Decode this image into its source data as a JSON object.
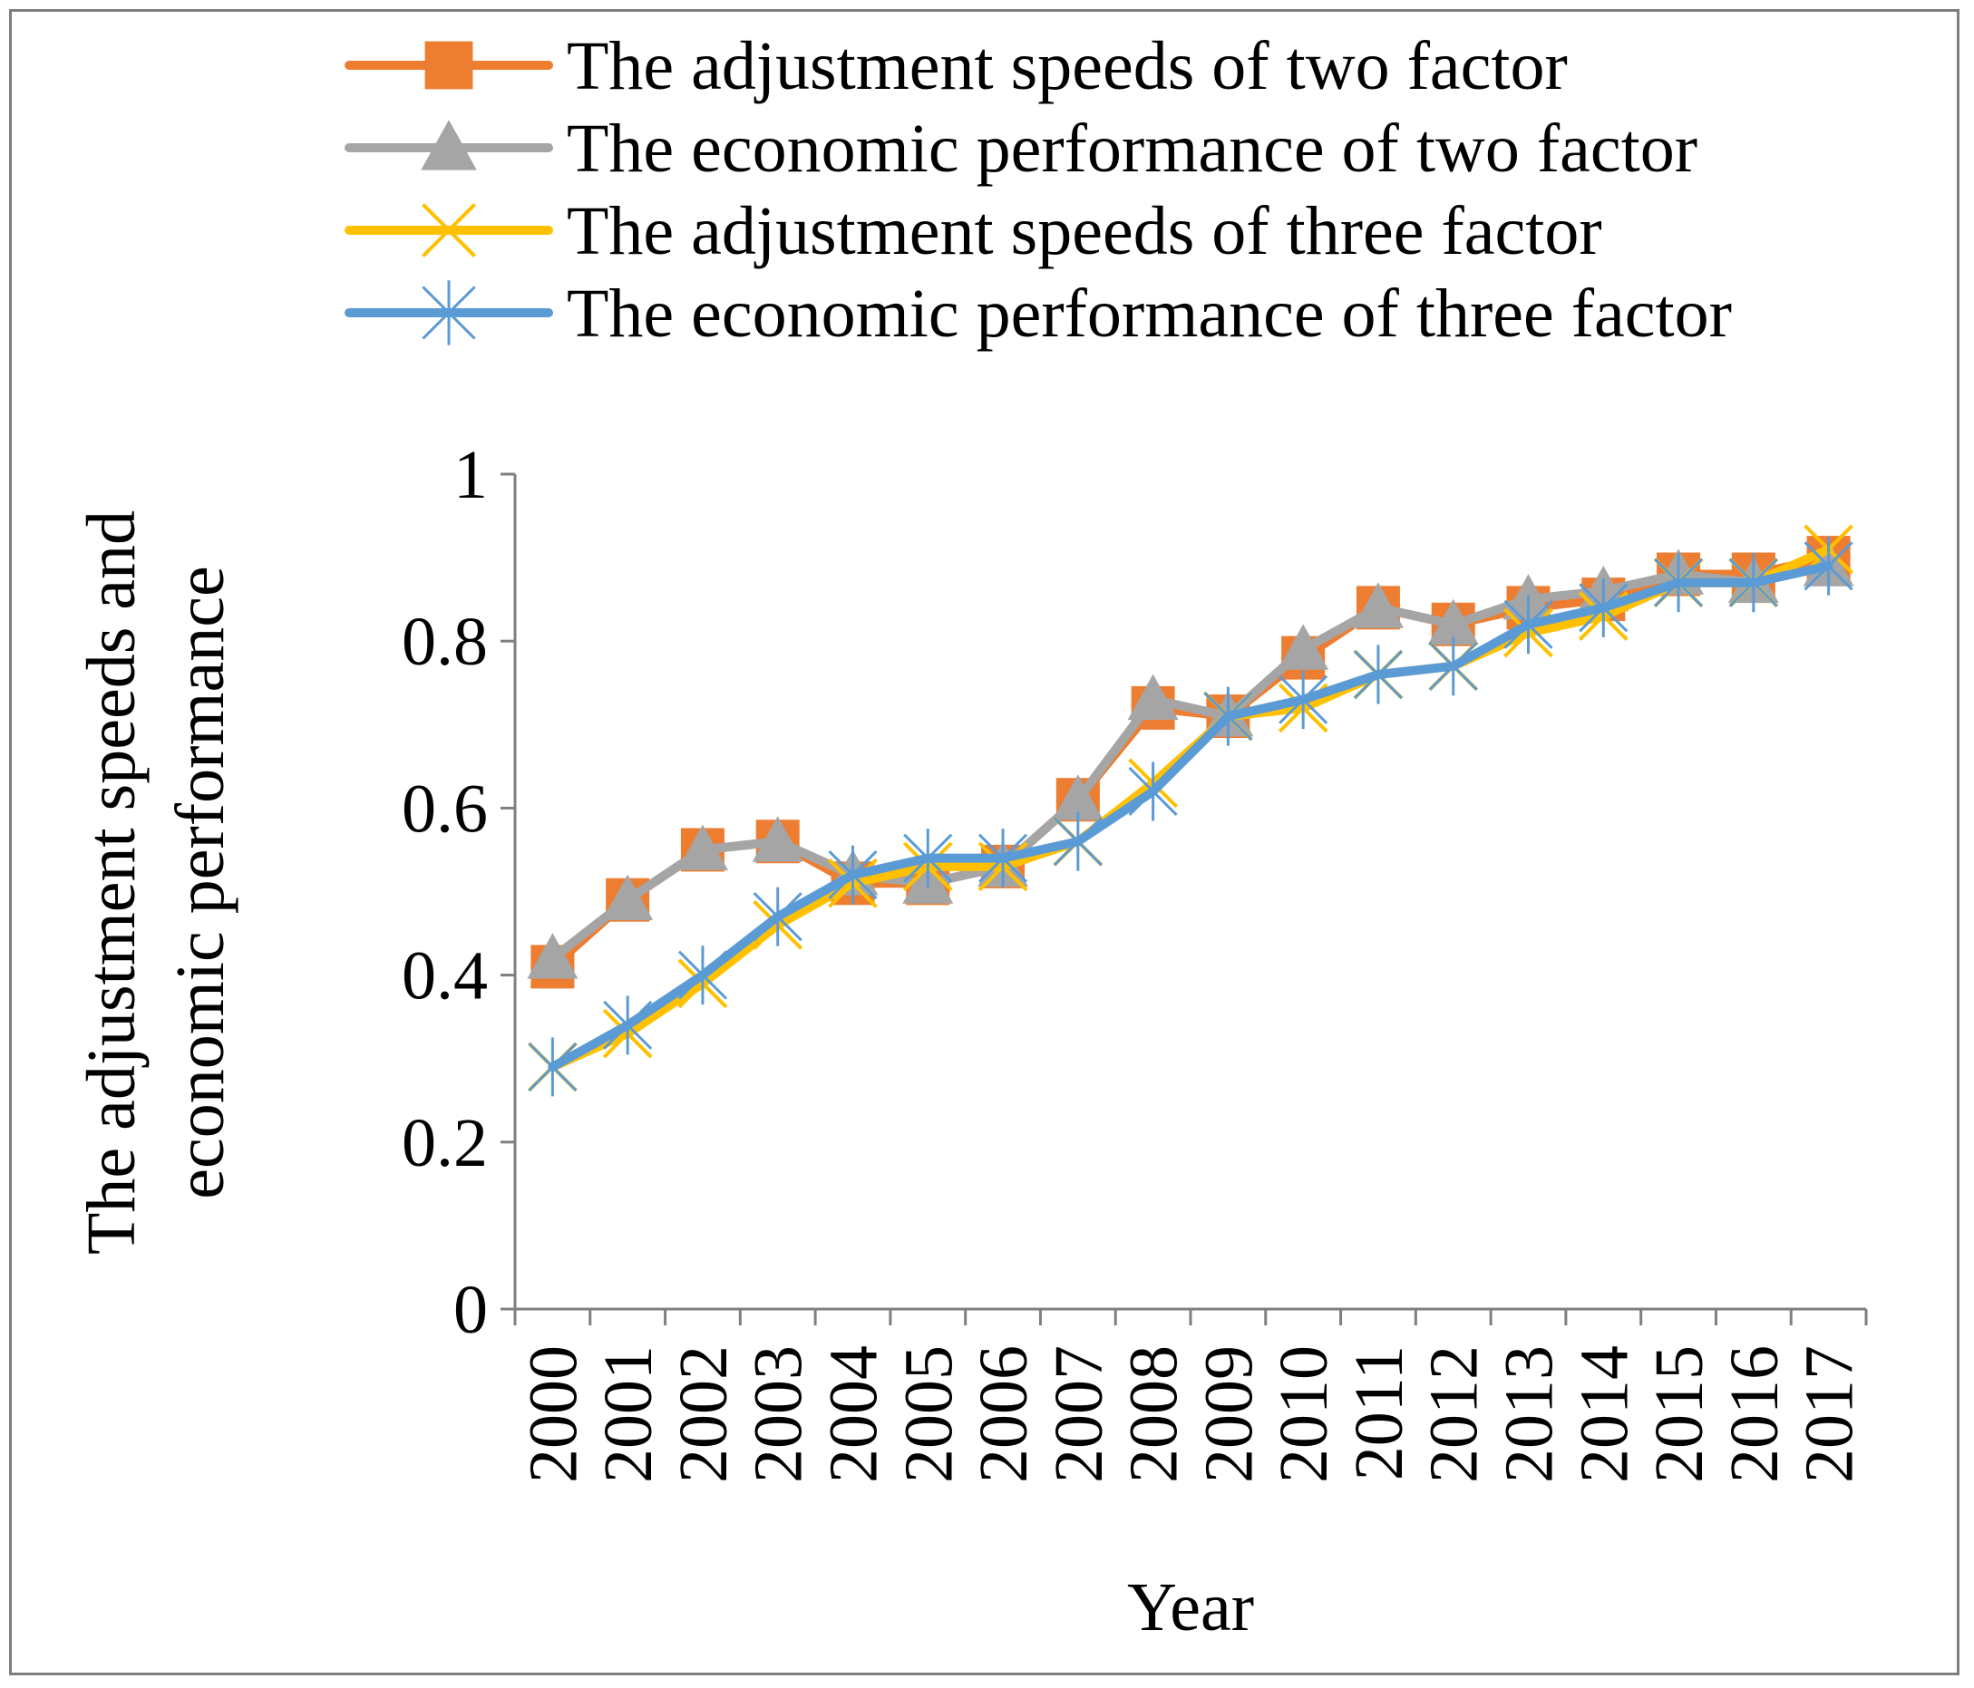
{
  "chart_data": {
    "type": "line",
    "title": "",
    "xlabel": "Year",
    "ylabel_lines": [
      "The adjustment speeds and",
      "economic performance"
    ],
    "categories": [
      "2000",
      "2001",
      "2002",
      "2003",
      "2004",
      "2005",
      "2006",
      "2007",
      "2008",
      "2009",
      "2010",
      "2011",
      "2012",
      "2013",
      "2014",
      "2015",
      "2016",
      "2017"
    ],
    "ylim": [
      0,
      1
    ],
    "yticks": [
      0,
      0.2,
      0.4,
      0.6,
      0.8,
      1
    ],
    "ytick_labels": [
      "0",
      "0.2",
      "0.4",
      "0.6",
      "0.8",
      "1"
    ],
    "grid": false,
    "legend_position": "top",
    "series": [
      {
        "name": "The adjustment speeds of two factor",
        "color": "#ED7D31",
        "marker": "square",
        "values": [
          0.41,
          0.49,
          0.55,
          0.56,
          0.51,
          0.51,
          0.53,
          0.61,
          0.72,
          0.71,
          0.78,
          0.84,
          0.82,
          0.84,
          0.85,
          0.88,
          0.88,
          0.9
        ]
      },
      {
        "name": "The economic performance of two factor",
        "color": "#A5A5A5",
        "marker": "triangle",
        "values": [
          0.42,
          0.49,
          0.55,
          0.56,
          0.52,
          0.51,
          0.53,
          0.61,
          0.73,
          0.71,
          0.79,
          0.84,
          0.82,
          0.85,
          0.86,
          0.88,
          0.87,
          0.89
        ]
      },
      {
        "name": "The adjustment speeds of three factor",
        "color": "#FFC000",
        "marker": "x",
        "values": [
          0.29,
          0.33,
          0.39,
          0.46,
          0.51,
          0.53,
          0.53,
          0.56,
          0.63,
          0.71,
          0.72,
          0.76,
          0.77,
          0.81,
          0.83,
          0.87,
          0.87,
          0.91
        ]
      },
      {
        "name": "The economic performance of three factor",
        "color": "#5B9BD5",
        "marker": "star",
        "values": [
          0.29,
          0.34,
          0.4,
          0.47,
          0.52,
          0.54,
          0.54,
          0.56,
          0.62,
          0.71,
          0.73,
          0.76,
          0.77,
          0.82,
          0.84,
          0.87,
          0.87,
          0.89
        ]
      }
    ]
  }
}
